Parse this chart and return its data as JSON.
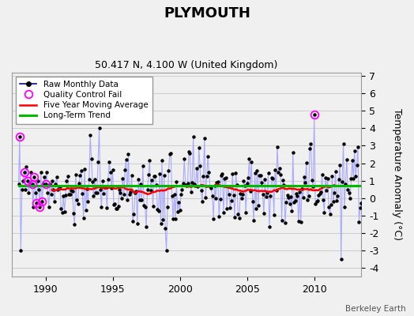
{
  "title": "PLYMOUTH",
  "subtitle": "50.417 N, 4.100 W (United Kingdom)",
  "ylabel": "Temperature Anomaly (°C)",
  "credit": "Berkeley Earth",
  "ylim": [
    -4.5,
    7.2
  ],
  "yticks": [
    -4,
    -3,
    -2,
    -1,
    0,
    1,
    2,
    3,
    4,
    5,
    6,
    7
  ],
  "xlim": [
    1987.5,
    2013.5
  ],
  "xticks": [
    1990,
    1995,
    2000,
    2005,
    2010
  ],
  "start_year": 1988,
  "colors": {
    "raw_line": "#aaaaff",
    "raw_marker": "#000000",
    "qc_marker": "#ff00ff",
    "five_year_ma": "#ff0000",
    "long_term": "#00bb00",
    "background": "#f0f0f0",
    "grid": "#cccccc"
  },
  "long_term_value": 0.72,
  "figsize": [
    5.24,
    4.0
  ],
  "dpi": 100
}
